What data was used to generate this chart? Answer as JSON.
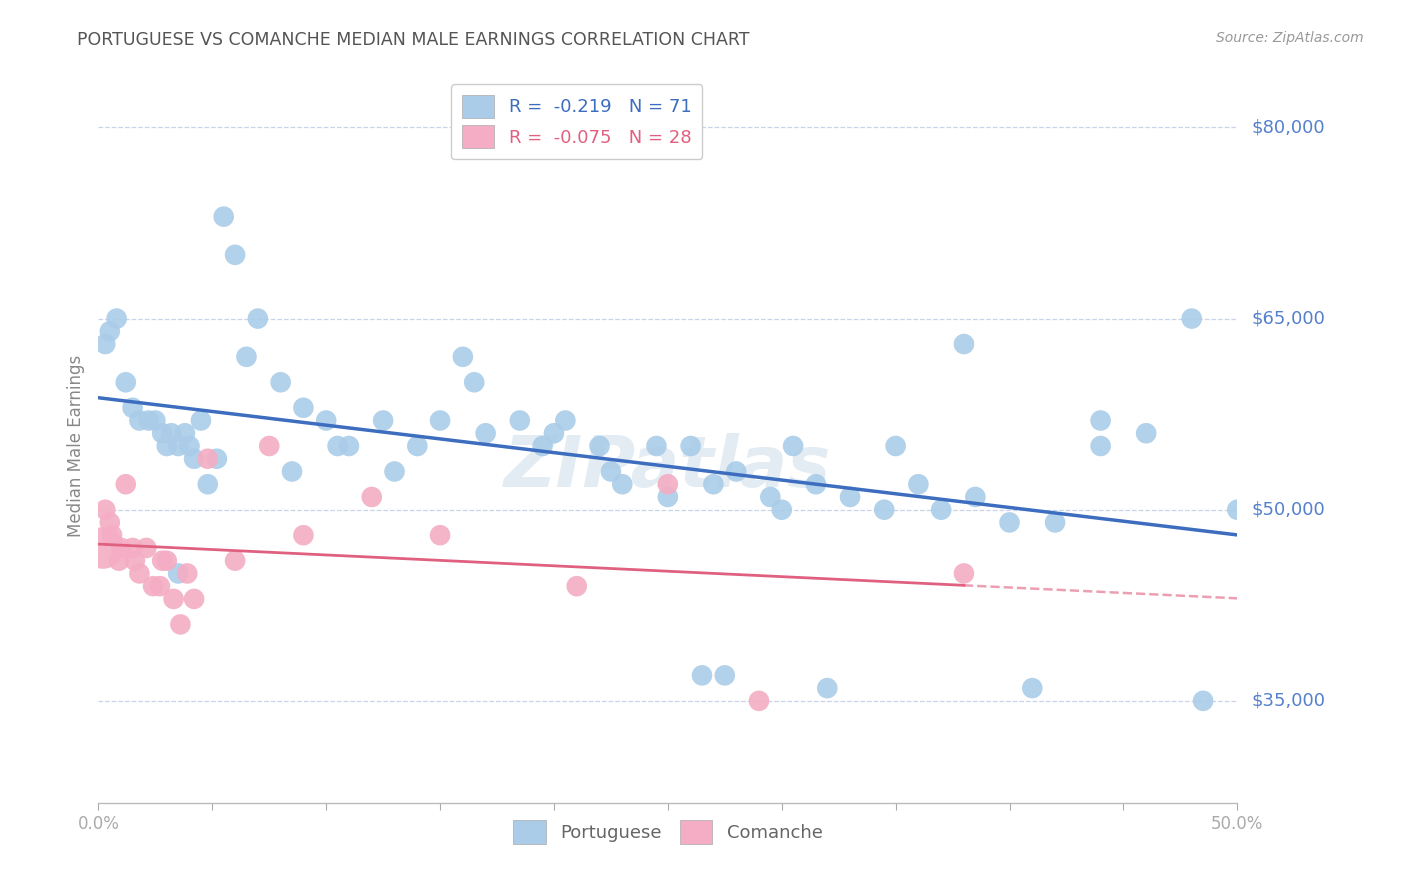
{
  "title": "PORTUGUESE VS COMANCHE MEDIAN MALE EARNINGS CORRELATION CHART",
  "source": "Source: ZipAtlas.com",
  "ylabel": "Median Male Earnings",
  "ytick_labels": [
    "$35,000",
    "$50,000",
    "$65,000",
    "$80,000"
  ],
  "ytick_values": [
    35000,
    50000,
    65000,
    80000
  ],
  "portuguese_x": [
    0.5,
    0.8,
    1.2,
    1.5,
    1.8,
    2.2,
    2.5,
    2.8,
    3.0,
    3.2,
    3.5,
    3.8,
    4.0,
    4.2,
    4.5,
    5.5,
    6.0,
    7.0,
    8.0,
    9.0,
    10.0,
    11.0,
    12.5,
    14.0,
    15.0,
    16.0,
    17.0,
    18.5,
    19.5,
    20.5,
    22.0,
    23.0,
    24.5,
    26.0,
    27.0,
    28.0,
    29.5,
    30.5,
    31.5,
    33.0,
    34.5,
    36.0,
    37.0,
    38.5,
    40.0,
    42.0,
    44.0,
    46.0,
    48.0,
    20.0,
    25.0,
    35.0,
    8.5,
    10.5,
    13.0,
    16.5,
    22.5,
    30.0,
    38.0,
    44.0,
    6.5,
    3.5,
    4.8,
    5.2,
    26.5,
    32.0,
    27.5,
    41.0,
    48.5,
    50.0,
    0.3
  ],
  "portuguese_y": [
    64000,
    65000,
    60000,
    58000,
    57000,
    57000,
    57000,
    56000,
    55000,
    56000,
    55000,
    56000,
    55000,
    54000,
    57000,
    73000,
    70000,
    65000,
    60000,
    58000,
    57000,
    55000,
    57000,
    55000,
    57000,
    62000,
    56000,
    57000,
    55000,
    57000,
    55000,
    52000,
    55000,
    55000,
    52000,
    53000,
    51000,
    55000,
    52000,
    51000,
    50000,
    52000,
    50000,
    51000,
    49000,
    49000,
    57000,
    56000,
    65000,
    56000,
    51000,
    55000,
    53000,
    55000,
    53000,
    60000,
    53000,
    50000,
    63000,
    55000,
    62000,
    45000,
    52000,
    54000,
    37000,
    36000,
    37000,
    36000,
    35000,
    50000,
    63000
  ],
  "comanche_x": [
    0.3,
    0.6,
    0.9,
    1.2,
    1.5,
    1.8,
    2.1,
    2.4,
    2.7,
    3.0,
    3.3,
    3.6,
    3.9,
    4.8,
    6.0,
    7.5,
    9.0,
    12.0,
    15.0,
    21.0,
    25.0,
    29.0,
    38.0,
    0.5,
    1.0,
    1.6,
    2.8,
    4.2
  ],
  "comanche_y": [
    50000,
    48000,
    46000,
    52000,
    47000,
    45000,
    47000,
    44000,
    44000,
    46000,
    43000,
    41000,
    45000,
    54000,
    46000,
    55000,
    48000,
    51000,
    48000,
    44000,
    52000,
    35000,
    45000,
    49000,
    47000,
    46000,
    46000,
    43000
  ],
  "comanche_large_x": 0.2,
  "comanche_large_y": 47000,
  "portuguese_color": "#aacce8",
  "comanche_color": "#f4adc4",
  "portuguese_line_color": "#3d6dbf",
  "comanche_line_color": "#e06080",
  "xlim": [
    0,
    50
  ],
  "ylim": [
    27000,
    83000
  ],
  "bg_color": "#ffffff",
  "grid_color": "#c8d4e8",
  "watermark": "ZIPatlas",
  "title_color": "#555555",
  "ytick_color": "#5580cc"
}
